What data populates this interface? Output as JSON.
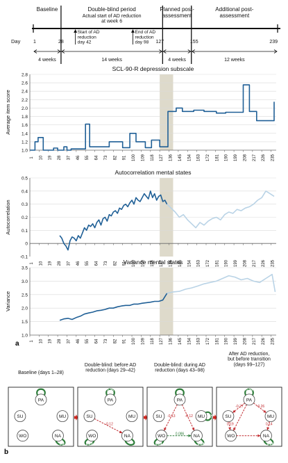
{
  "timeline": {
    "day_label": "Day",
    "phases": [
      {
        "label": "Baseline",
        "duration": "4 weeks"
      },
      {
        "label": "Double-blind period",
        "duration": "14 weeks"
      },
      {
        "label": "Planned post-\nassessment",
        "duration": "4 weeks"
      },
      {
        "label": "Additional post-\nassessment",
        "duration": "12 weeks"
      }
    ],
    "subtitle": "Actual start of AD reduction\nat week 6",
    "day_ticks": [
      "1",
      "28",
      "127",
      "155",
      "239"
    ],
    "annotations": [
      "Start of AD\nreduction\nday 42",
      "End of AD\nreduction\nday 98"
    ]
  },
  "panel_a_label": "a",
  "panel_b_label": "b",
  "chart_data": [
    {
      "type": "line",
      "title": "SCL-90-R depression subscale",
      "ylabel": "Average item score",
      "xlabel": "",
      "ylim": [
        1.0,
        2.8
      ],
      "yticks": [
        "1.0",
        "1.2",
        "1.4",
        "1.6",
        "1.8",
        "2.0",
        "2.2",
        "2.4",
        "2.6",
        "2.8"
      ],
      "xlim": [
        1,
        240
      ],
      "xticks": [
        "1",
        "10",
        "19",
        "28",
        "37",
        "46",
        "55",
        "64",
        "73",
        "82",
        "91",
        "100",
        "109",
        "118",
        "127",
        "136",
        "145",
        "154",
        "163",
        "172",
        "181",
        "190",
        "199",
        "208",
        "217",
        "226",
        "235"
      ],
      "shaded_region": [
        127,
        140
      ],
      "series": [
        {
          "color": "#1f5f96",
          "x": [
            1,
            6,
            6,
            9,
            9,
            14,
            14,
            24,
            24,
            28,
            28,
            34,
            34,
            37,
            37,
            41,
            41,
            55,
            55,
            59,
            59,
            66,
            66,
            78,
            78,
            91,
            91,
            98,
            98,
            104,
            104,
            113,
            113,
            119,
            119,
            127,
            127,
            135,
            135,
            143,
            143,
            149,
            149,
            160,
            160,
            170,
            170,
            182,
            182,
            191,
            191,
            208,
            208,
            214,
            214,
            221,
            221,
            228,
            228,
            238,
            238
          ],
          "y": [
            1.0,
            1.0,
            1.2,
            1.2,
            1.3,
            1.3,
            1.0,
            1.0,
            1.05,
            1.05,
            1.0,
            1.0,
            1.08,
            1.08,
            1.0,
            1.0,
            1.03,
            1.03,
            1.62,
            1.62,
            1.08,
            1.08,
            1.08,
            1.08,
            1.2,
            1.2,
            1.06,
            1.06,
            1.4,
            1.4,
            1.2,
            1.2,
            1.06,
            1.06,
            1.24,
            1.24,
            1.08,
            1.08,
            1.92,
            1.92,
            2.0,
            2.0,
            1.92,
            1.92,
            1.95,
            1.95,
            1.92,
            1.92,
            1.88,
            1.88,
            1.9,
            1.9,
            2.55,
            2.55,
            1.92,
            1.92,
            1.7,
            1.7,
            1.7,
            1.7,
            2.15
          ]
        }
      ]
    },
    {
      "type": "line",
      "title": "Autocorrelation mental states",
      "ylabel": "Autocorrelation",
      "xlabel": "",
      "ylim": [
        -0.1,
        0.5
      ],
      "yticks": [
        "-0.1",
        "0",
        "0.1",
        "0.2",
        "0.3",
        "0.4",
        "0.5"
      ],
      "xlim": [
        1,
        240
      ],
      "xticks": [
        "1",
        "10",
        "19",
        "28",
        "37",
        "46",
        "55",
        "64",
        "73",
        "82",
        "91",
        "100",
        "109",
        "118",
        "127",
        "136",
        "145",
        "154",
        "163",
        "172",
        "181",
        "190",
        "199",
        "208",
        "217",
        "226",
        "235"
      ],
      "shaded_region": [
        127,
        140
      ],
      "series": [
        {
          "color": "#1f5f96",
          "x": [
            30,
            32,
            34,
            36,
            38,
            40,
            42,
            44,
            46,
            48,
            50,
            52,
            54,
            56,
            58,
            60,
            62,
            64,
            66,
            68,
            70,
            72,
            74,
            76,
            78,
            80,
            82,
            84,
            86,
            88,
            90,
            92,
            94,
            96,
            98,
            100,
            102,
            104,
            106,
            108,
            110,
            112,
            114,
            116,
            118,
            120,
            122,
            124,
            126,
            128,
            130,
            132,
            134
          ],
          "y": [
            0.06,
            0.04,
            0.0,
            -0.02,
            -0.05,
            0.02,
            0.05,
            0.04,
            0.02,
            0.06,
            0.04,
            0.08,
            0.12,
            0.1,
            0.14,
            0.13,
            0.15,
            0.12,
            0.16,
            0.18,
            0.14,
            0.19,
            0.2,
            0.17,
            0.22,
            0.21,
            0.24,
            0.25,
            0.23,
            0.27,
            0.26,
            0.29,
            0.3,
            0.28,
            0.31,
            0.33,
            0.3,
            0.35,
            0.33,
            0.32,
            0.35,
            0.38,
            0.36,
            0.34,
            0.4,
            0.35,
            0.38,
            0.33,
            0.36,
            0.37,
            0.32,
            0.33,
            0.3
          ]
        },
        {
          "color": "#b9d3e6",
          "x": [
            134,
            138,
            142,
            146,
            150,
            154,
            158,
            162,
            166,
            170,
            174,
            178,
            182,
            186,
            190,
            194,
            198,
            202,
            206,
            210,
            214,
            218,
            222,
            226,
            230,
            234,
            238
          ],
          "y": [
            0.3,
            0.27,
            0.24,
            0.2,
            0.22,
            0.18,
            0.15,
            0.12,
            0.16,
            0.14,
            0.17,
            0.19,
            0.2,
            0.18,
            0.22,
            0.24,
            0.23,
            0.26,
            0.25,
            0.27,
            0.28,
            0.3,
            0.33,
            0.35,
            0.4,
            0.38,
            0.36
          ]
        }
      ]
    },
    {
      "type": "line",
      "title": "Variance mental states",
      "ylabel": "Variance",
      "xlabel": "",
      "ylim": [
        1.0,
        3.5
      ],
      "yticks": [
        "1.0",
        "1.5",
        "2.0",
        "2.5",
        "3.0",
        "3.5"
      ],
      "xlim": [
        1,
        240
      ],
      "xticks": [
        "1",
        "10",
        "19",
        "28",
        "37",
        "46",
        "55",
        "64",
        "73",
        "82",
        "91",
        "100",
        "109",
        "118",
        "127",
        "136",
        "145",
        "154",
        "163",
        "172",
        "181",
        "190",
        "199",
        "208",
        "217",
        "226",
        "235"
      ],
      "shaded_region": [
        127,
        140
      ],
      "series": [
        {
          "color": "#1f5f96",
          "x": [
            30,
            34,
            38,
            42,
            46,
            50,
            54,
            58,
            62,
            66,
            70,
            74,
            78,
            82,
            86,
            90,
            94,
            98,
            102,
            106,
            110,
            114,
            118,
            122,
            126,
            130,
            134
          ],
          "y": [
            1.55,
            1.6,
            1.62,
            1.58,
            1.65,
            1.7,
            1.78,
            1.82,
            1.85,
            1.9,
            1.92,
            1.95,
            2.0,
            2.0,
            2.05,
            2.08,
            2.1,
            2.1,
            2.15,
            2.15,
            2.18,
            2.2,
            2.22,
            2.25,
            2.25,
            2.3,
            2.55
          ]
        },
        {
          "color": "#b9d3e6",
          "x": [
            134,
            140,
            146,
            152,
            158,
            164,
            170,
            176,
            182,
            188,
            194,
            200,
            206,
            212,
            218,
            224,
            230,
            236,
            239
          ],
          "y": [
            2.55,
            2.6,
            2.62,
            2.7,
            2.75,
            2.82,
            2.9,
            2.95,
            3.0,
            3.1,
            3.2,
            3.15,
            3.05,
            3.1,
            3.0,
            2.95,
            3.1,
            3.25,
            2.6
          ]
        }
      ]
    }
  ],
  "network": {
    "legend_colors": {
      "positive": "#2e7d3a",
      "negative": "#c0282d"
    },
    "panels": [
      {
        "title": "Baseline (days 1–28)",
        "nodes": [
          "PA",
          "SU",
          "MU",
          "WO",
          "NA"
        ],
        "self_loops": [
          {
            "node": "PA",
            "label": "",
            "color": "#2e7d3a"
          },
          {
            "node": "NA",
            "label": "0.2",
            "color": "#2e7d3a"
          }
        ],
        "edges": []
      },
      {
        "title": "Double-blind: before AD\nreduction (days 29–42)",
        "nodes": [
          "PA",
          "SU",
          "MU",
          "WO",
          "NA"
        ],
        "self_loops": [
          {
            "node": "PA",
            "label": "0.25",
            "color": "#2e7d3a"
          },
          {
            "node": "WO",
            "label": "0.23",
            "color": "#2e7d3a"
          },
          {
            "node": "NA",
            "label": "",
            "color": "#2e7d3a"
          }
        ],
        "edges": [
          {
            "from": "SU",
            "to": "NA",
            "label": "-0.12",
            "color": "#c0282d"
          }
        ]
      },
      {
        "title": "Double-blind: during AD\nreduction (days 43–98)",
        "nodes": [
          "PA",
          "SU",
          "MU",
          "WO",
          "NA"
        ],
        "self_loops": [
          {
            "node": "PA",
            "label": "",
            "color": "#2e7d3a"
          },
          {
            "node": "MU",
            "label": "0.25",
            "color": "#2e7d3a"
          },
          {
            "node": "WO",
            "label": "0.24",
            "color": "#2e7d3a"
          },
          {
            "node": "NA",
            "label": "0.28",
            "color": "#2e7d3a"
          }
        ],
        "edges": [
          {
            "from": "PA",
            "to": "WO",
            "label": "-0.13",
            "color": "#c0282d"
          },
          {
            "from": "PA",
            "to": "NA",
            "label": "-0.12",
            "color": "#c0282d"
          },
          {
            "from": "WO",
            "to": "NA",
            "label": "0.086",
            "color": "#2e7d3a"
          }
        ]
      },
      {
        "title": "After AD reduction,\nbut before transition\n(days 99–127)",
        "nodes": [
          "PA",
          "SU",
          "MU",
          "WO",
          "NA"
        ],
        "self_loops": [
          {
            "node": "PA",
            "label": "0.09",
            "color": "#2e7d3a"
          },
          {
            "node": "NA",
            "label": "0.26",
            "color": "#2e7d3a"
          }
        ],
        "edges": [
          {
            "from": "PA",
            "to": "SU",
            "label": "-0.27",
            "color": "#c0282d"
          },
          {
            "from": "PA",
            "to": "MU",
            "label": "-0.26",
            "color": "#c0282d"
          },
          {
            "from": "PA",
            "to": "WO",
            "label": "",
            "color": "#c0282d"
          },
          {
            "from": "SU",
            "to": "WO",
            "label": "0.19",
            "color": "#c0282d"
          },
          {
            "from": "MU",
            "to": "NA",
            "label": "0.14",
            "color": "#c0282d"
          },
          {
            "from": "WO",
            "to": "NA",
            "label": "",
            "color": "#c0282d"
          }
        ]
      }
    ]
  }
}
